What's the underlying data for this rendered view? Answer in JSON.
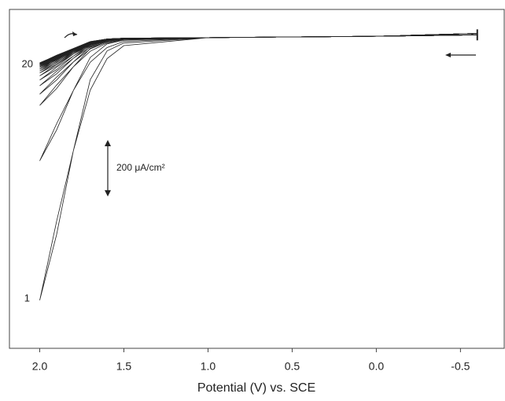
{
  "chart_data": {
    "type": "line",
    "x_label": "Potential (V) vs. SCE",
    "xlim": [
      2.18,
      -0.76
    ],
    "ylim": [
      -1100,
      100
    ],
    "xticks": [
      {
        "value": 2,
        "label": "2.0"
      },
      1.5,
      {
        "value": 1,
        "label": "1.0"
      },
      0.5,
      {
        "value": 0,
        "label": "0.0"
      },
      -0.5
    ],
    "x": [
      -0.6,
      0.0,
      1.0,
      1.5,
      1.6,
      1.7,
      1.8,
      1.9,
      2.0,
      1.95,
      1.9,
      1.8,
      1.7,
      1.6,
      1.5,
      1.0,
      0.0,
      -0.6
    ],
    "color": "#222222",
    "series": [
      {
        "values": [
          10,
          5,
          0,
          -19,
          -47,
          -149,
          -400,
          -698,
          -930,
          -791,
          -651,
          -400,
          -186,
          -74,
          -28,
          0,
          5,
          15
        ]
      },
      {
        "values": [
          10,
          5,
          0,
          -9,
          -22,
          -70,
          -187,
          -327,
          -436,
          -371,
          -305,
          -187,
          -87,
          -35,
          -13,
          0,
          5,
          15
        ]
      },
      {
        "values": [
          10,
          5,
          0,
          -5,
          -12,
          -38,
          -103,
          -180,
          -240,
          -204,
          -168,
          -103,
          -48,
          -19,
          -7,
          0,
          5,
          15
        ]
      },
      {
        "values": [
          10,
          5,
          0,
          -4,
          -10,
          -32,
          -86,
          -150,
          -200,
          -170,
          -140,
          -86,
          -40,
          -16,
          -6,
          0,
          5,
          15
        ]
      },
      {
        "values": [
          10,
          5,
          0,
          -3,
          -9,
          -27,
          -73,
          -128,
          -170,
          -145,
          -119,
          -73,
          -34,
          -14,
          -5,
          0,
          5,
          15
        ]
      },
      {
        "values": [
          10,
          5,
          0,
          -3,
          -8,
          -24,
          -65,
          -113,
          -150,
          -128,
          -105,
          -65,
          -30,
          -12,
          -5,
          0,
          5,
          15
        ]
      },
      {
        "values": [
          10,
          5,
          0,
          -3,
          -7,
          -22,
          -58,
          -101,
          -135,
          -115,
          -95,
          -58,
          -27,
          -11,
          -4,
          0,
          5,
          15
        ]
      },
      {
        "values": [
          10,
          5,
          0,
          -3,
          -6,
          -20,
          -54,
          -94,
          -125,
          -106,
          -88,
          -54,
          -25,
          -10,
          -4,
          0,
          5,
          15
        ]
      },
      {
        "values": [
          10,
          5,
          0,
          -2,
          -6,
          -19,
          -51,
          -89,
          -118,
          -100,
          -83,
          -51,
          -24,
          -9,
          -4,
          0,
          5,
          15
        ]
      },
      {
        "values": [
          10,
          5,
          0,
          -2,
          -6,
          -18,
          -48,
          -84,
          -112,
          -95,
          -78,
          -48,
          -22,
          -9,
          -3,
          0,
          5,
          15
        ]
      },
      {
        "values": [
          10,
          5,
          0,
          -2,
          -5,
          -17,
          -46,
          -80,
          -107,
          -91,
          -75,
          -46,
          -21,
          -9,
          -3,
          0,
          5,
          15
        ]
      },
      {
        "values": [
          10,
          5,
          0,
          -2,
          -5,
          -16,
          -44,
          -77,
          -103,
          -88,
          -72,
          -44,
          -21,
          -8,
          -3,
          0,
          5,
          15
        ]
      },
      {
        "values": [
          10,
          5,
          0,
          -2,
          -5,
          -16,
          -43,
          -75,
          -100,
          -85,
          -70,
          -43,
          -20,
          -8,
          -3,
          0,
          5,
          15
        ]
      },
      {
        "values": [
          10,
          5,
          0,
          -2,
          -5,
          -16,
          -42,
          -73,
          -97,
          -82,
          -68,
          -42,
          -19,
          -8,
          -3,
          0,
          5,
          15
        ]
      },
      {
        "values": [
          10,
          5,
          0,
          -2,
          -5,
          -15,
          -41,
          -71,
          -95,
          -81,
          -67,
          -41,
          -19,
          -8,
          -3,
          0,
          5,
          15
        ]
      },
      {
        "values": [
          10,
          5,
          0,
          -2,
          -5,
          -15,
          -40,
          -70,
          -93,
          -79,
          -65,
          -40,
          -19,
          -7,
          -3,
          0,
          5,
          15
        ]
      },
      {
        "values": [
          10,
          5,
          0,
          -2,
          -5,
          -15,
          -40,
          -69,
          -92,
          -78,
          -64,
          -40,
          -18,
          -7,
          -3,
          0,
          5,
          15
        ]
      },
      {
        "values": [
          10,
          5,
          0,
          -2,
          -5,
          -15,
          -39,
          -68,
          -91,
          -77,
          -64,
          -39,
          -18,
          -7,
          -3,
          0,
          5,
          15
        ]
      },
      {
        "values": [
          10,
          5,
          0,
          -2,
          -5,
          -14,
          -39,
          -68,
          -90,
          -77,
          -63,
          -39,
          -18,
          -7,
          -3,
          0,
          5,
          15
        ]
      },
      {
        "values": [
          10,
          5,
          0,
          -2,
          -5,
          -14,
          -38,
          -67,
          -89,
          -76,
          -62,
          -38,
          -18,
          -7,
          -3,
          0,
          5,
          15
        ]
      }
    ],
    "annotations": [
      "1",
      "20"
    ],
    "scale_bar": {
      "value": 200,
      "label": "200 μA/cm²"
    }
  }
}
